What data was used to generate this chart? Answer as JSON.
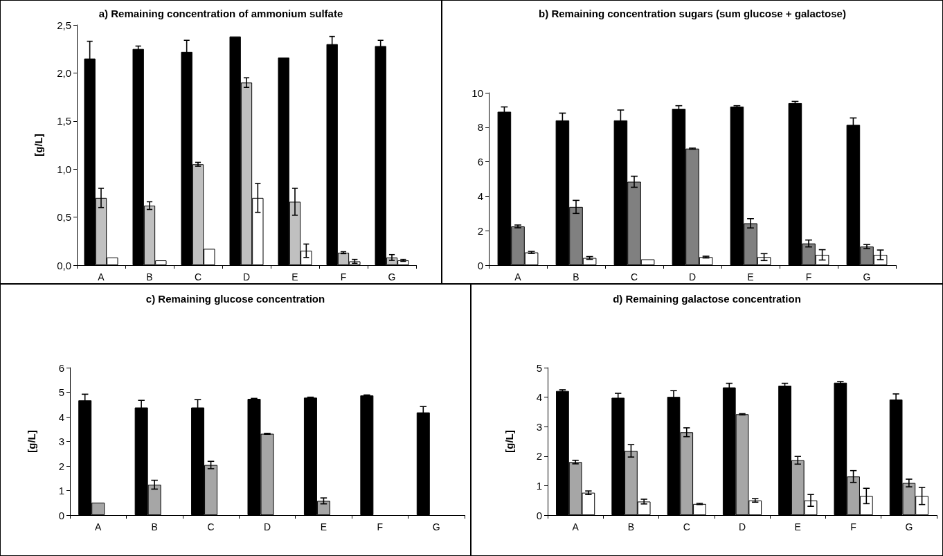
{
  "chart_data": [
    {
      "type": "bar",
      "title": "a) Remaining concentration of ammonium sulfate",
      "ylabel": "[g/L]",
      "categories": [
        "A",
        "B",
        "C",
        "D",
        "E",
        "F",
        "G"
      ],
      "ylim": [
        0,
        2.5
      ],
      "yticks": [
        {
          "value": 0,
          "label": "0,0"
        },
        {
          "value": 0.5,
          "label": "0,5"
        },
        {
          "value": 1,
          "label": "1,0"
        },
        {
          "value": 1.5,
          "label": "1,5"
        },
        {
          "value": 2,
          "label": "2,0"
        },
        {
          "value": 2.5,
          "label": "2,5"
        }
      ],
      "series": [
        {
          "color": "#000000",
          "values": [
            2.15,
            2.25,
            2.22,
            2.38,
            2.16,
            2.3,
            2.28
          ],
          "errors": [
            0.18,
            0.03,
            0.12,
            null,
            null,
            0.08,
            0.06
          ]
        },
        {
          "color": "#c0c0c0",
          "values": [
            0.7,
            0.62,
            1.05,
            1.9,
            0.66,
            0.13,
            0.08
          ],
          "errors": [
            0.1,
            0.04,
            0.02,
            0.05,
            0.14,
            0.01,
            0.03
          ]
        },
        {
          "color": "#ffffff",
          "values": [
            0.08,
            0.05,
            0.17,
            0.7,
            0.15,
            0.04,
            0.05
          ],
          "errors": [
            null,
            null,
            null,
            0.15,
            0.07,
            0.02,
            0.01
          ]
        }
      ]
    },
    {
      "type": "bar",
      "title": "b) Remaining concentration sugars (sum glucose + galactose)",
      "categories": [
        "A",
        "B",
        "C",
        "D",
        "E",
        "F",
        "G"
      ],
      "ylim": [
        0,
        10
      ],
      "yticks": [
        0,
        2,
        4,
        6,
        8,
        10
      ],
      "series": [
        {
          "color": "#000000",
          "values": [
            8.9,
            8.4,
            8.4,
            9.07,
            9.2,
            9.4,
            8.14
          ],
          "errors": [
            0.28,
            0.42,
            0.6,
            0.18,
            0.05,
            0.1,
            0.4
          ]
        },
        {
          "color": "#808080",
          "values": [
            2.25,
            3.38,
            4.84,
            6.76,
            2.43,
            1.26,
            1.08
          ],
          "errors": [
            0.08,
            0.38,
            0.32,
            0.03,
            0.27,
            0.2,
            0.12
          ]
        },
        {
          "color": "#ffffff",
          "values": [
            0.74,
            0.42,
            0.34,
            0.47,
            0.47,
            0.6,
            0.6
          ],
          "errors": [
            0.06,
            0.08,
            null,
            0.05,
            0.2,
            0.3,
            0.28
          ]
        }
      ]
    },
    {
      "type": "bar",
      "title": "c) Remaining glucose concentration",
      "ylabel": "[g/L]",
      "categories": [
        "A",
        "B",
        "C",
        "D",
        "E",
        "F",
        "G"
      ],
      "ylim": [
        0,
        6
      ],
      "yticks": [
        0,
        1,
        2,
        3,
        4,
        5,
        6
      ],
      "series": [
        {
          "color": "#000000",
          "values": [
            4.67,
            4.38,
            4.38,
            4.73,
            4.78,
            4.87,
            4.18
          ],
          "errors": [
            0.25,
            0.29,
            0.32,
            0.02,
            0.02,
            0.02,
            0.24
          ]
        },
        {
          "color": "#a6a6a6",
          "values": [
            0.51,
            1.24,
            2.04,
            3.31,
            0.58,
            null,
            null
          ],
          "errors": [
            null,
            0.18,
            0.15,
            0.02,
            0.12,
            null,
            null
          ]
        },
        {
          "color": "#ffffff",
          "values": [
            null,
            null,
            null,
            null,
            null,
            null,
            null
          ]
        }
      ]
    },
    {
      "type": "bar",
      "title": "d) Remaining galactose concentration",
      "ylabel": "[g/L]",
      "categories": [
        "A",
        "B",
        "C",
        "D",
        "E",
        "F",
        "G"
      ],
      "ylim": [
        0,
        5
      ],
      "yticks": [
        0,
        1,
        2,
        3,
        4,
        5
      ],
      "series": [
        {
          "color": "#000000",
          "values": [
            4.21,
            3.98,
            4.01,
            4.33,
            4.39,
            4.49,
            3.92
          ],
          "errors": [
            0.04,
            0.15,
            0.21,
            0.14,
            0.08,
            0.04,
            0.19
          ]
        },
        {
          "color": "#a6a6a6",
          "values": [
            1.8,
            2.18,
            2.81,
            3.42,
            1.86,
            1.31,
            1.09
          ],
          "errors": [
            0.06,
            0.21,
            0.15,
            0.02,
            0.13,
            0.2,
            0.13
          ]
        },
        {
          "color": "#ffffff",
          "values": [
            0.76,
            0.46,
            0.38,
            0.5,
            0.5,
            0.65,
            0.65
          ],
          "errors": [
            0.06,
            0.08,
            0.02,
            0.06,
            0.2,
            0.26,
            0.29
          ]
        }
      ]
    }
  ]
}
